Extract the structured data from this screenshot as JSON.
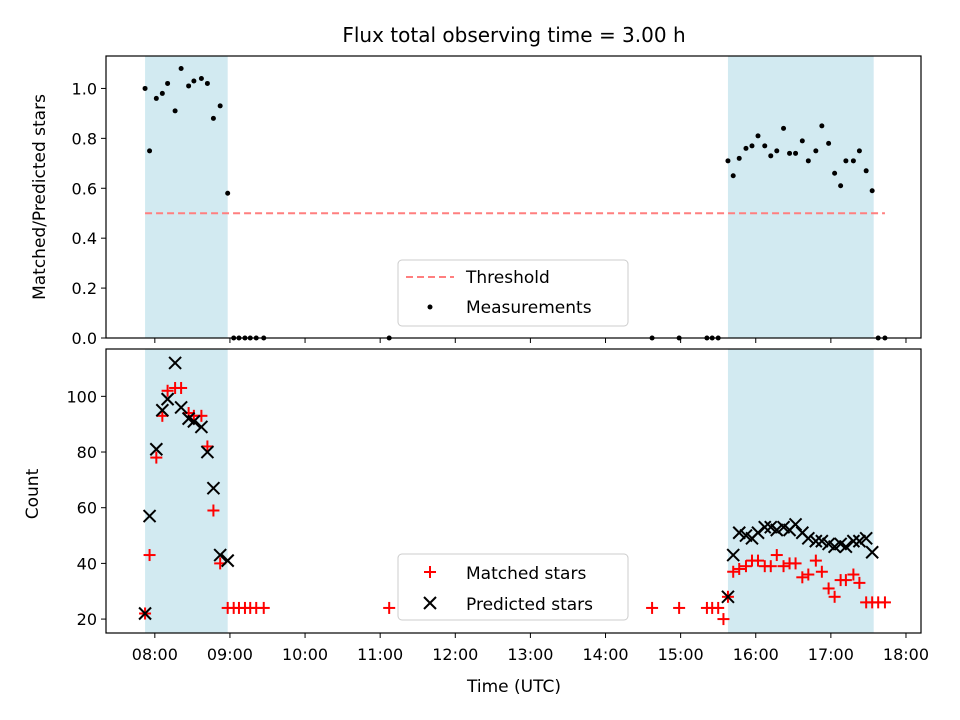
{
  "title": "Flux total observing time = 3.00 h",
  "xlabel": "Time (UTC)",
  "x_ticks": [
    "08:00",
    "09:00",
    "10:00",
    "11:00",
    "12:00",
    "13:00",
    "14:00",
    "15:00",
    "16:00",
    "17:00",
    "18:00"
  ],
  "chart_data": [
    {
      "type": "scatter",
      "title": "Flux total observing time = 3.00 h",
      "xlabel": "",
      "ylabel": "Matched/Predicted stars",
      "x_unit": "hours UTC",
      "xlim": [
        7.35,
        18.2
      ],
      "ylim": [
        0,
        1.13
      ],
      "yticks": [
        0.0,
        0.2,
        0.4,
        0.6,
        0.8,
        1.0
      ],
      "legend": [
        "Threshold",
        "Measurements"
      ],
      "legend_position": "lower center",
      "shaded_regions": [
        [
          7.87,
          8.97
        ],
        [
          15.63,
          17.57
        ]
      ],
      "threshold": {
        "name": "Threshold",
        "value": 0.5,
        "x_range": [
          7.87,
          17.72
        ],
        "color": "#ff7f7f"
      },
      "series": [
        {
          "name": "Measurements",
          "color": "#000000",
          "x": [
            7.87,
            7.93,
            8.02,
            8.1,
            8.17,
            8.27,
            8.35,
            8.45,
            8.52,
            8.62,
            8.7,
            8.78,
            8.87,
            8.97,
            9.05,
            9.12,
            9.2,
            9.27,
            9.35,
            9.45,
            11.12,
            14.62,
            14.98,
            15.35,
            15.42,
            15.5,
            15.63,
            15.7,
            15.78,
            15.87,
            15.95,
            16.03,
            16.12,
            16.2,
            16.28,
            16.37,
            16.45,
            16.53,
            16.62,
            16.7,
            16.8,
            16.88,
            16.97,
            17.05,
            17.13,
            17.2,
            17.3,
            17.38,
            17.47,
            17.55,
            17.63,
            17.72
          ],
          "y": [
            1.0,
            0.75,
            0.96,
            0.98,
            1.02,
            0.91,
            1.08,
            1.01,
            1.03,
            1.04,
            1.02,
            0.88,
            0.93,
            0.58,
            0.0,
            0.0,
            0.0,
            0.0,
            0.0,
            0.0,
            0.0,
            0.0,
            0.0,
            0.0,
            0.0,
            0.0,
            0.71,
            0.65,
            0.72,
            0.76,
            0.77,
            0.81,
            0.77,
            0.73,
            0.75,
            0.84,
            0.74,
            0.74,
            0.79,
            0.71,
            0.75,
            0.85,
            0.78,
            0.66,
            0.61,
            0.71,
            0.71,
            0.75,
            0.67,
            0.59,
            0.0,
            0.0
          ]
        }
      ]
    },
    {
      "type": "scatter",
      "xlabel": "Time (UTC)",
      "ylabel": "Count",
      "x_unit": "hours UTC",
      "xlim": [
        7.35,
        18.2
      ],
      "ylim": [
        15,
        117
      ],
      "yticks": [
        20,
        40,
        60,
        80,
        100
      ],
      "legend": [
        "Matched stars",
        "Predicted stars"
      ],
      "legend_position": "lower center",
      "shaded_regions": [
        [
          7.87,
          8.97
        ],
        [
          15.63,
          17.57
        ]
      ],
      "series": [
        {
          "name": "Matched stars",
          "marker": "+",
          "color": "#ff0000",
          "x": [
            7.87,
            7.93,
            8.02,
            8.1,
            8.17,
            8.27,
            8.35,
            8.45,
            8.52,
            8.62,
            8.7,
            8.78,
            8.87,
            8.97,
            9.05,
            9.12,
            9.2,
            9.27,
            9.35,
            9.45,
            11.12,
            14.62,
            14.98,
            15.35,
            15.42,
            15.5,
            15.57,
            15.63,
            15.7,
            15.78,
            15.87,
            15.95,
            16.03,
            16.12,
            16.2,
            16.28,
            16.37,
            16.45,
            16.53,
            16.62,
            16.7,
            16.8,
            16.88,
            16.97,
            17.05,
            17.13,
            17.2,
            17.3,
            17.38,
            17.47,
            17.55,
            17.63,
            17.72
          ],
          "y": [
            22,
            43,
            78,
            93,
            102,
            103,
            103,
            94,
            93,
            93,
            82,
            59,
            40,
            24,
            24,
            24,
            24,
            24,
            24,
            24,
            24,
            24,
            24,
            24,
            24,
            24,
            20,
            28,
            37,
            38,
            39,
            41,
            41,
            39,
            39,
            43,
            39,
            40,
            40,
            35,
            36,
            41,
            37,
            31,
            28,
            34,
            34,
            36,
            33,
            26,
            26,
            26,
            26
          ]
        },
        {
          "name": "Predicted stars",
          "marker": "x",
          "color": "#000000",
          "x": [
            7.87,
            7.93,
            8.02,
            8.1,
            8.17,
            8.27,
            8.35,
            8.45,
            8.52,
            8.62,
            8.7,
            8.78,
            8.87,
            8.97,
            15.63,
            15.7,
            15.78,
            15.87,
            15.95,
            16.03,
            16.12,
            16.2,
            16.28,
            16.37,
            16.45,
            16.53,
            16.62,
            16.7,
            16.8,
            16.88,
            16.97,
            17.05,
            17.13,
            17.2,
            17.3,
            17.38,
            17.47,
            17.55
          ],
          "y": [
            22,
            57,
            81,
            95,
            99,
            112,
            96,
            92,
            91,
            89,
            80,
            67,
            43,
            41,
            28,
            43,
            51,
            50,
            49,
            51,
            53,
            53,
            52,
            53,
            52,
            54,
            51,
            49,
            48,
            48,
            47,
            46,
            47,
            46,
            48,
            48,
            49,
            44
          ]
        }
      ]
    }
  ]
}
